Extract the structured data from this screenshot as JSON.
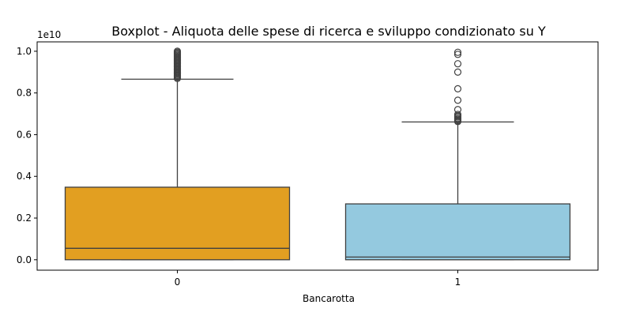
{
  "chart_data": {
    "type": "boxplot",
    "title": "Boxplot - Aliquota delle spese di ricerca e sviluppo condizionato su Y",
    "xlabel": "Bancarotta",
    "ylabel": "",
    "y_multiplier_label": "1e10",
    "categories": [
      "0",
      "1"
    ],
    "ylim": [
      -0.05,
      1.045
    ],
    "yticks": [
      0.0,
      0.2,
      0.4,
      0.6,
      0.8,
      1.0
    ],
    "ytick_labels": [
      "0.0",
      "0.2",
      "0.4",
      "0.6",
      "0.8",
      "1.0"
    ],
    "grid": false,
    "legend": "none",
    "boxes": [
      {
        "category": "0",
        "color": "#e29f21",
        "min": 0.0,
        "q1": 0.0,
        "median": 0.055,
        "q3": 0.348,
        "max": 0.866,
        "outliers": [
          0.87,
          0.875,
          0.88,
          0.885,
          0.89,
          0.895,
          0.9,
          0.905,
          0.91,
          0.915,
          0.92,
          0.925,
          0.93,
          0.935,
          0.94,
          0.945,
          0.95,
          0.955,
          0.96,
          0.965,
          0.97,
          0.975,
          0.98,
          0.985,
          0.99,
          0.995,
          1.0
        ]
      },
      {
        "category": "1",
        "color": "#94c9df",
        "min": 0.0,
        "q1": 0.0,
        "median": 0.013,
        "q3": 0.268,
        "max": 0.661,
        "outliers": [
          0.663,
          0.668,
          0.673,
          0.678,
          0.685,
          0.69,
          0.697,
          0.72,
          0.765,
          0.82,
          0.9,
          0.94,
          0.985,
          0.995
        ]
      }
    ]
  }
}
